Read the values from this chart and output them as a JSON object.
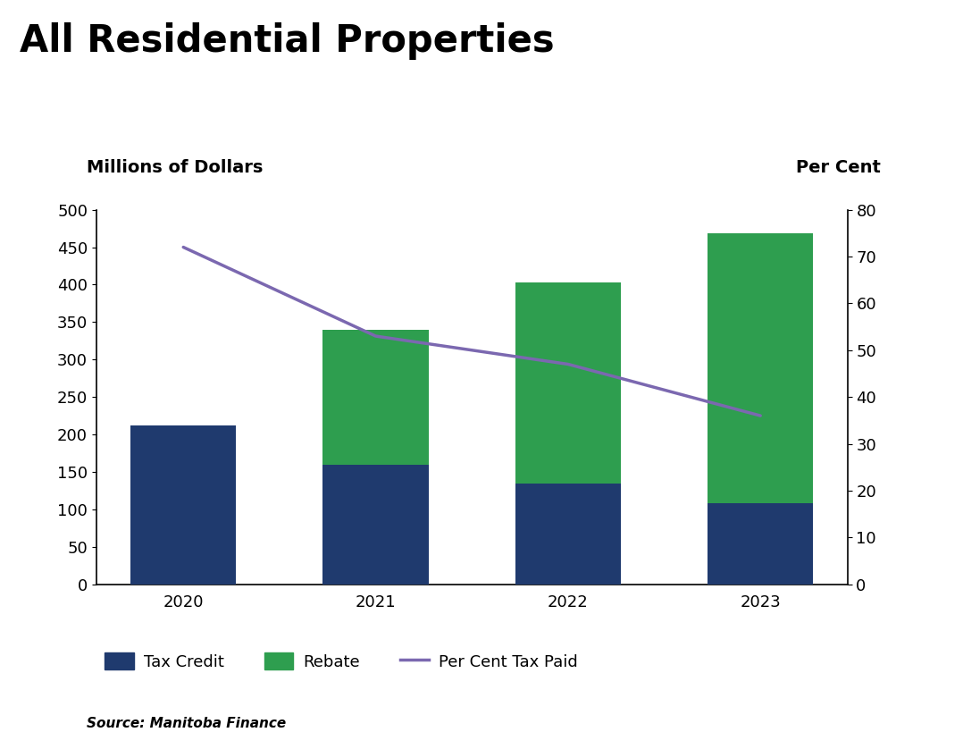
{
  "title": "All Residential Properties",
  "years": [
    2020,
    2021,
    2022,
    2023
  ],
  "tax_credit": [
    212,
    160,
    135,
    108
  ],
  "rebate": [
    0,
    180,
    268,
    360
  ],
  "per_cent_tax_paid": [
    72,
    53,
    47,
    36
  ],
  "bar_color_credit": "#1f3a6e",
  "bar_color_rebate": "#2e9e4f",
  "line_color": "#7b68b0",
  "left_ylabel": "Millions of Dollars",
  "right_ylabel": "Per Cent",
  "ylim_left": [
    0,
    500
  ],
  "ylim_right": [
    0,
    80
  ],
  "yticks_left": [
    0,
    50,
    100,
    150,
    200,
    250,
    300,
    350,
    400,
    450,
    500
  ],
  "yticks_right": [
    0,
    10,
    20,
    30,
    40,
    50,
    60,
    70,
    80
  ],
  "source_text": "Source: Manitoba Finance",
  "legend_labels": [
    "Tax Credit",
    "Rebate",
    "Per Cent Tax Paid"
  ],
  "title_fontsize": 30,
  "axis_label_fontsize": 14,
  "tick_fontsize": 13,
  "legend_fontsize": 13,
  "source_fontsize": 11,
  "bar_width": 0.55
}
